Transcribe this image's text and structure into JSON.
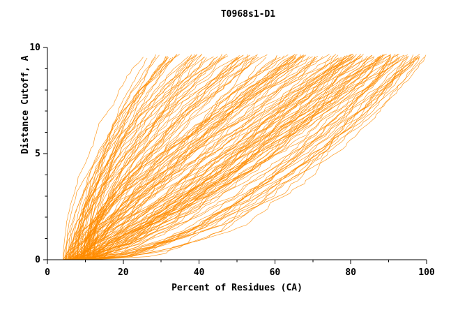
{
  "chart_data": {
    "type": "line",
    "title": "T0968s1-D1",
    "xlabel": "Percent of Residues (CA)",
    "ylabel": "Distance Cutoff, A",
    "xlim": [
      0,
      100
    ],
    "ylim": [
      0,
      10
    ],
    "x_ticks": [
      0,
      20,
      40,
      60,
      80,
      100
    ],
    "y_ticks": [
      0,
      5,
      10
    ],
    "x_minor_ticks": [
      10,
      30,
      50,
      70,
      90
    ],
    "y_minor_ticks": [
      1,
      2,
      3,
      4,
      6,
      7,
      8,
      9
    ],
    "grid": false,
    "legend": "none",
    "line_color": "#FF8C00",
    "axis_color": "#000000",
    "background": "#FFFFFF",
    "ensemble": {
      "description": "Dense bundle of monotonically increasing cumulative GDT curves (percent of CA residues under each distance cutoff), one per predicted model. Curves start near x=4-13 at y=0, fan out to reach the top (y ~ 9.5-9.7 A) anywhere between x ~ 24 and x = 100. Best models hug the bottom-right and rise nearly vertically near x = 100; worst models rise steeply on the left near x ~ 20-30. Heavy overlap forms a solid orange mass in the lower-left region.",
      "num_curves": 150,
      "seed": 968101,
      "y_top_range": [
        9.5,
        9.7
      ],
      "x_start_range": [
        4,
        13
      ],
      "x_end_range": [
        24,
        100
      ]
    }
  }
}
